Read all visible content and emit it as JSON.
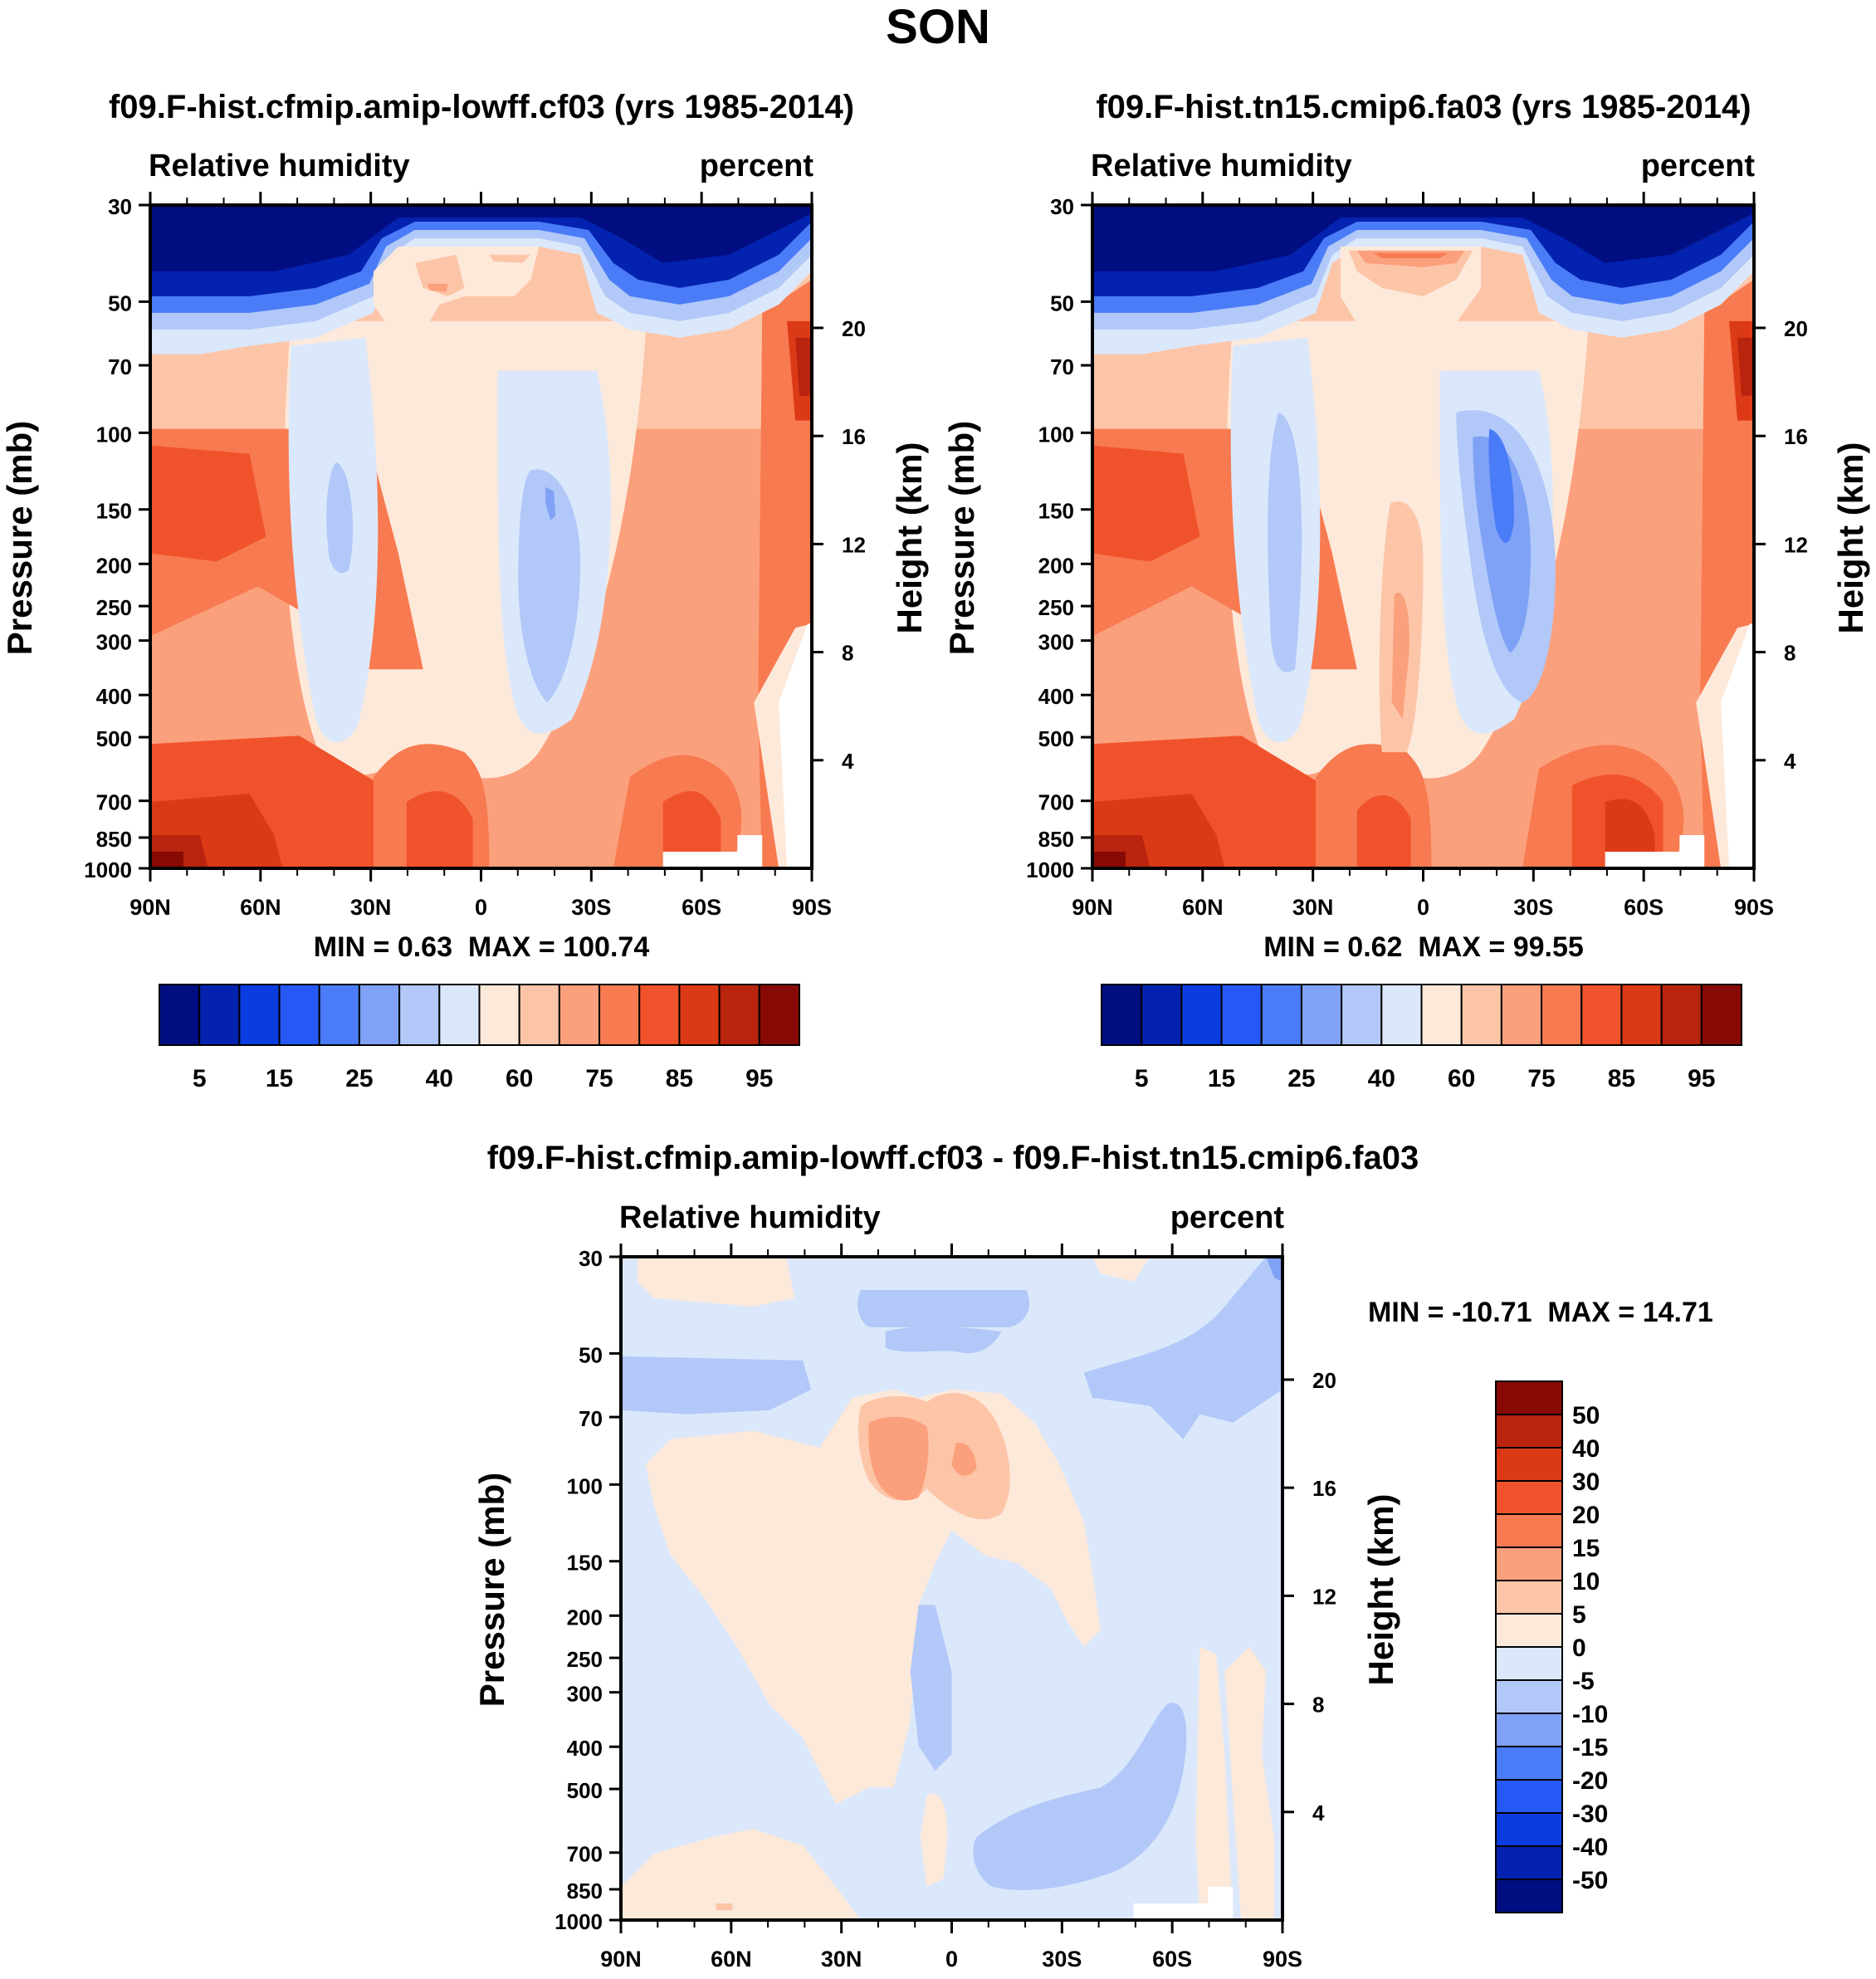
{
  "figure_title": "SON",
  "colors": {
    "main_scale": [
      "#000e82",
      "#0422b0",
      "#0a3ce0",
      "#2658f5",
      "#4a7cf7",
      "#7fa2f6",
      "#b1c8f8",
      "#dbe8fb",
      "#fde9da",
      "#fdc5a8",
      "#fba07c",
      "#f87a50",
      "#f0532c",
      "#dc3a16",
      "#b8240d",
      "#870a05"
    ],
    "diff_scale": [
      "#000e82",
      "#0422b0",
      "#0a3ce0",
      "#2658f5",
      "#4a7cf7",
      "#7fa2f6",
      "#b1c8f8",
      "#dbe8fb",
      "#fde9da",
      "#fdc5a8",
      "#fba07c",
      "#f87a50",
      "#f0532c",
      "#dc3a16",
      "#b8240d",
      "#870a05"
    ]
  },
  "chart_data": [
    {
      "type": "heatmap",
      "title": "f09.F-hist.cfmip.amip-lowff.cf03 (yrs 1985-2014)",
      "left_label": "Relative humidity",
      "right_label": "percent",
      "ylabel": "Pressure (mb)",
      "y2label": "Height (km)",
      "x_ticks": [
        "90N",
        "60N",
        "30N",
        "0",
        "30S",
        "60S",
        "90S"
      ],
      "y_ticks": [
        "30",
        "50",
        "70",
        "100",
        "150",
        "200",
        "250",
        "300",
        "400",
        "500",
        "700",
        "850",
        "1000"
      ],
      "y2_ticks": [
        "20",
        "16",
        "12",
        "8",
        "4"
      ],
      "ylim": [
        1000,
        30
      ],
      "xlim": [
        90,
        -90
      ],
      "min_label": "MIN =",
      "min_value": "0.63",
      "max_label": "MAX =",
      "max_value": "100.74",
      "colorbar": {
        "levels": [
          "5",
          "15",
          "25",
          "40",
          "60",
          "75",
          "85",
          "95"
        ]
      }
    },
    {
      "type": "heatmap",
      "title": "f09.F-hist.tn15.cmip6.fa03 (yrs 1985-2014)",
      "left_label": "Relative humidity",
      "right_label": "percent",
      "ylabel": "Pressure (mb)",
      "y2label": "Height (km)",
      "x_ticks": [
        "90N",
        "60N",
        "30N",
        "0",
        "30S",
        "60S",
        "90S"
      ],
      "y_ticks": [
        "30",
        "50",
        "70",
        "100",
        "150",
        "200",
        "250",
        "300",
        "400",
        "500",
        "700",
        "850",
        "1000"
      ],
      "y2_ticks": [
        "20",
        "16",
        "12",
        "8",
        "4"
      ],
      "ylim": [
        1000,
        30
      ],
      "xlim": [
        90,
        -90
      ],
      "min_label": "MIN =",
      "min_value": "0.62",
      "max_label": "MAX =",
      "max_value": "99.55",
      "colorbar": {
        "levels": [
          "5",
          "15",
          "25",
          "40",
          "60",
          "75",
          "85",
          "95"
        ]
      }
    },
    {
      "type": "heatmap",
      "title": "f09.F-hist.cfmip.amip-lowff.cf03 - f09.F-hist.tn15.cmip6.fa03",
      "left_label": "Relative humidity",
      "right_label": "percent",
      "ylabel": "Pressure (mb)",
      "y2label": "Height (km)",
      "x_ticks": [
        "90N",
        "60N",
        "30N",
        "0",
        "30S",
        "60S",
        "90S"
      ],
      "y_ticks": [
        "30",
        "50",
        "70",
        "100",
        "150",
        "200",
        "250",
        "300",
        "400",
        "500",
        "700",
        "850",
        "1000"
      ],
      "y2_ticks": [
        "20",
        "16",
        "12",
        "8",
        "4"
      ],
      "ylim": [
        1000,
        30
      ],
      "xlim": [
        90,
        -90
      ],
      "min_label": "MIN =",
      "min_value": "-10.71",
      "max_label": "MAX =",
      "max_value": "14.71",
      "colorbar": {
        "levels": [
          "50",
          "40",
          "30",
          "20",
          "15",
          "10",
          "5",
          "0",
          "-5",
          "-10",
          "-15",
          "-20",
          "-30",
          "-40",
          "-50"
        ]
      }
    }
  ]
}
